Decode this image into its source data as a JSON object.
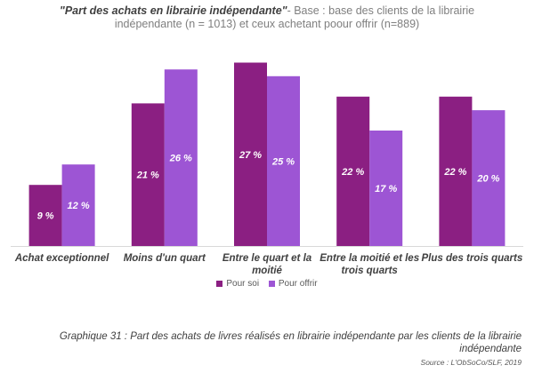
{
  "header": {
    "title_strong": "\"Part des achats en librairie indépendante\"",
    "title_rest": "- Base : base des clients de la librairie",
    "subtitle": "indépendante (n = 1013) et ceux achetant poour offrir (n=889)"
  },
  "chart_data": {
    "type": "bar",
    "categories": [
      "Achat exceptionnel",
      "Moins d'un quart",
      "Entre le quart et la moitié",
      "Entre la moitié et les trois quarts",
      "Plus des trois quarts"
    ],
    "series": [
      {
        "name": "Pour soi",
        "values": [
          9,
          21,
          27,
          22,
          22
        ],
        "labels": [
          "9 %",
          "21 %",
          "27 %",
          "22 %",
          "22 %"
        ],
        "color": "#8b1f82"
      },
      {
        "name": "Pour offrir",
        "values": [
          12,
          26,
          25,
          17,
          20
        ],
        "labels": [
          "12 %",
          "26 %",
          "25 %",
          "17 %",
          "20 %"
        ],
        "color": "#9d55d4"
      }
    ],
    "ylim": [
      0,
      28
    ],
    "grid": false,
    "legend_position": "bottom"
  },
  "legend": {
    "items": [
      {
        "label": "Pour soi",
        "color": "#8b1f82"
      },
      {
        "label": "Pour offrir",
        "color": "#9d55d4"
      }
    ]
  },
  "caption": "Graphique 31 : Part des achats de livres réalisés en librairie indépendante par les clients de la librairie indépendante",
  "source": "Source : L'ObSoCo/SLF, 2019"
}
